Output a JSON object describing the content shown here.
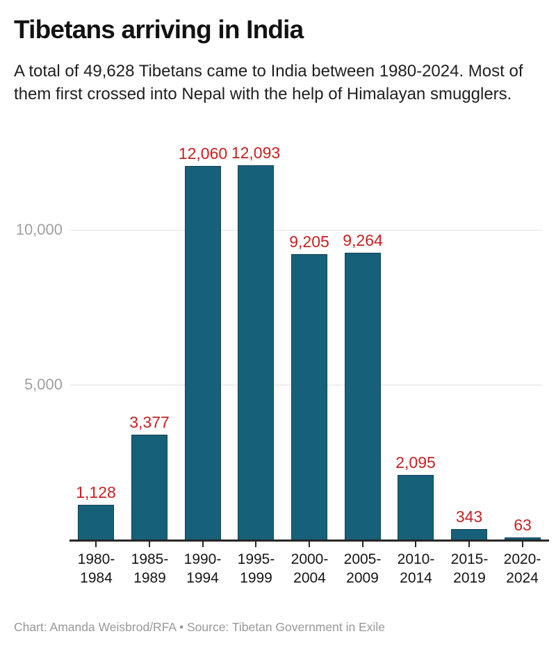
{
  "header": {
    "title": "Tibetans arriving in India",
    "subtitle": "A total of 49,628 Tibetans came to India between 1980-2024. Most of them first crossed into Nepal with the help of Himalayan smugglers."
  },
  "chart_data": {
    "type": "bar",
    "title": "Tibetans arriving in India",
    "categories": [
      "1980-1984",
      "1985-1989",
      "1990-1994",
      "1995-1999",
      "2000-2004",
      "2005-2009",
      "2010-2014",
      "2015-2019",
      "2020-2024"
    ],
    "values": [
      1128,
      3377,
      12060,
      12093,
      9205,
      9264,
      2095,
      343,
      63
    ],
    "value_labels": [
      "1,128",
      "3,377",
      "12,060",
      "12,093",
      "9,205",
      "9,264",
      "2,095",
      "343",
      "63"
    ],
    "total": "49,628",
    "xlabel": "",
    "ylabel": "",
    "ylim": [
      0,
      12500
    ],
    "yticks": [
      {
        "value": 5000,
        "label": "5,000"
      },
      {
        "value": 10000,
        "label": "10,000"
      }
    ],
    "grid": "horizontal",
    "legend": "none",
    "colors": {
      "bar_fill": "#17607a",
      "bar_border": "#0f4256",
      "value_label": "#c32222",
      "gridline": "#e0e0e0",
      "axis": "#262626",
      "ytick_label": "#a0a0a0",
      "category_label": "#151515"
    }
  },
  "footer": {
    "credit": "Chart: Amanda Weisbrod/RFA • Source: Tibetan Government in Exile"
  }
}
